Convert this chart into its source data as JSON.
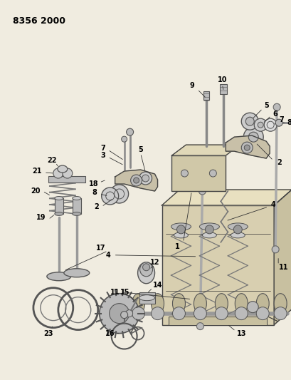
{
  "title": "8356 2000",
  "bg_color": "#f0ece0",
  "fig_width": 4.1,
  "fig_height": 5.33,
  "dpi": 100,
  "line_color": "#333333",
  "part_fill": "#d8d0b8",
  "part_edge": "#444444"
}
